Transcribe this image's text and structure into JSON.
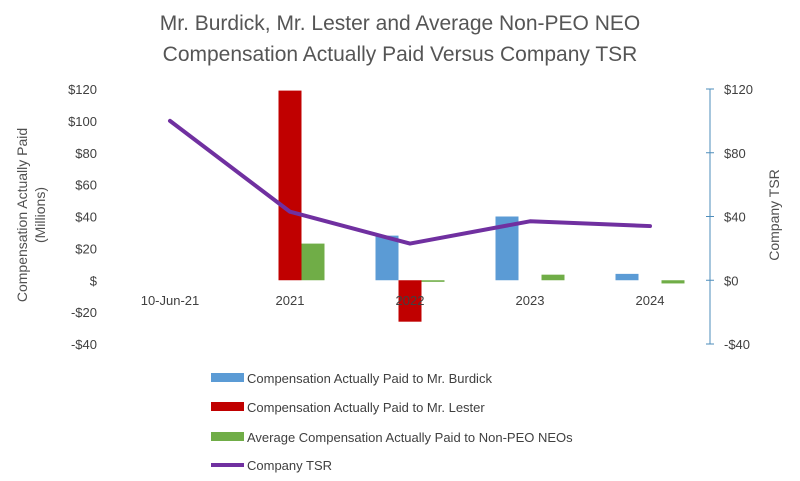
{
  "chart_data": {
    "type": "bar",
    "title": [
      "Mr. Burdick, Mr. Lester and Average Non-PEO NEO",
      "Compensation Actually Paid Versus Company TSR"
    ],
    "categories": [
      "10-Jun-21",
      "2021",
      "2022",
      "2023",
      "2024"
    ],
    "ylabel_left": [
      "Compensation Actually Paid",
      "(Millions)"
    ],
    "ylabel_right": "Company TSR",
    "ylim_left": [
      -40,
      120
    ],
    "ylim_right": [
      -40,
      120
    ],
    "left_ticks": [
      {
        "value": 120,
        "label": "$120"
      },
      {
        "value": 100,
        "label": "$100"
      },
      {
        "value": 80,
        "label": "$80"
      },
      {
        "value": 60,
        "label": "$60"
      },
      {
        "value": 40,
        "label": "$40"
      },
      {
        "value": 20,
        "label": "$20"
      },
      {
        "value": 0,
        "label": "$"
      },
      {
        "value": -20,
        "label": "-$20"
      },
      {
        "value": -40,
        "label": "-$40"
      }
    ],
    "right_ticks": [
      {
        "value": 120,
        "label": "$120"
      },
      {
        "value": 80,
        "label": "$80"
      },
      {
        "value": 40,
        "label": "$40"
      },
      {
        "value": 0,
        "label": "$0"
      },
      {
        "value": -40,
        "label": "-$40"
      }
    ],
    "series": [
      {
        "name": "Compensation Actually Paid to Mr. Burdick",
        "kind": "bar",
        "color": "#5B9BD5",
        "values": [
          null,
          null,
          28,
          40,
          4
        ]
      },
      {
        "name": "Compensation Actually Paid to Mr. Lester",
        "kind": "bar",
        "color": "#C00000",
        "values": [
          null,
          119,
          -26,
          null,
          null
        ]
      },
      {
        "name": "Average Compensation Actually Paid to Non-PEO NEOs",
        "kind": "bar",
        "color": "#70AD47",
        "values": [
          null,
          23,
          -1,
          3.5,
          -2
        ]
      },
      {
        "name": "Company TSR",
        "kind": "line",
        "color": "#7030A0",
        "axis": "right",
        "values": [
          100,
          43,
          23,
          37,
          34
        ]
      }
    ]
  }
}
